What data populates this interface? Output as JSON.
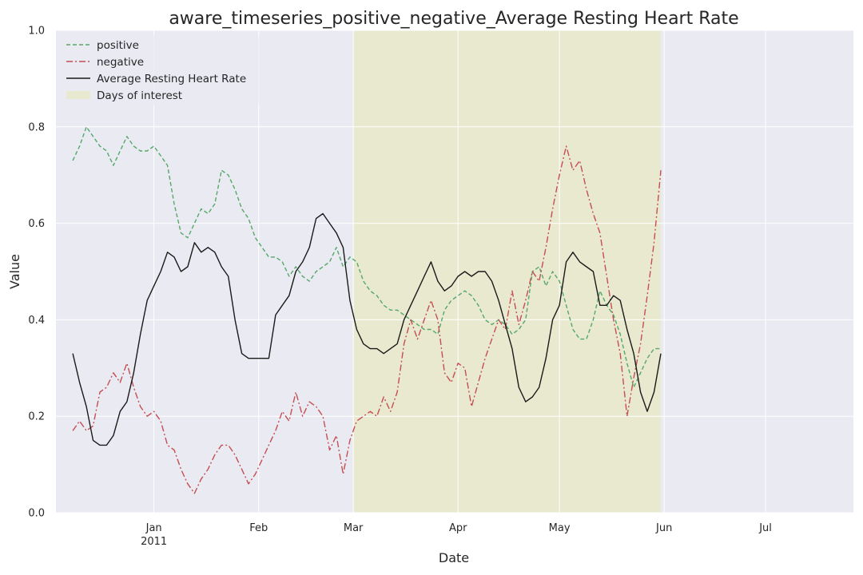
{
  "chart_data": {
    "type": "line",
    "title": "aware_timeseries_positive_negative_Average Resting Heart Rate",
    "xlabel": "Date",
    "ylabel": "Value",
    "ylim": [
      0,
      1
    ],
    "xlim": [
      "2010-12-03",
      "2011-07-27"
    ],
    "y_ticks": [
      "0.0",
      "0.2",
      "0.4",
      "0.6",
      "0.8",
      "1.0"
    ],
    "x_ticks": [
      {
        "date": "2011-01-01",
        "label": "Jan",
        "sublabel": "2011"
      },
      {
        "date": "2011-02-01",
        "label": "Feb",
        "sublabel": ""
      },
      {
        "date": "2011-03-01",
        "label": "Mar",
        "sublabel": ""
      },
      {
        "date": "2011-04-01",
        "label": "Apr",
        "sublabel": ""
      },
      {
        "date": "2011-05-01",
        "label": "May",
        "sublabel": ""
      },
      {
        "date": "2011-06-01",
        "label": "Jun",
        "sublabel": ""
      },
      {
        "date": "2011-07-01",
        "label": "Jul",
        "sublabel": ""
      }
    ],
    "grid": true,
    "legend_position": "top-left",
    "highlight": {
      "name": "Days of interest",
      "start": "2011-03-01",
      "end": "2011-05-31",
      "color": "#e9e9d0"
    },
    "series": [
      {
        "name": "positive",
        "color": "#55a868",
        "style": "dashed",
        "points": [
          [
            "2010-12-08",
            0.73
          ],
          [
            "2010-12-10",
            0.76
          ],
          [
            "2010-12-12",
            0.8
          ],
          [
            "2010-12-14",
            0.78
          ],
          [
            "2010-12-16",
            0.76
          ],
          [
            "2010-12-18",
            0.75
          ],
          [
            "2010-12-20",
            0.72
          ],
          [
            "2010-12-22",
            0.75
          ],
          [
            "2010-12-24",
            0.78
          ],
          [
            "2010-12-26",
            0.76
          ],
          [
            "2010-12-28",
            0.75
          ],
          [
            "2010-12-30",
            0.75
          ],
          [
            "2011-01-01",
            0.76
          ],
          [
            "2011-01-03",
            0.74
          ],
          [
            "2011-01-05",
            0.72
          ],
          [
            "2011-01-07",
            0.64
          ],
          [
            "2011-01-09",
            0.58
          ],
          [
            "2011-01-11",
            0.57
          ],
          [
            "2011-01-13",
            0.6
          ],
          [
            "2011-01-15",
            0.63
          ],
          [
            "2011-01-17",
            0.62
          ],
          [
            "2011-01-19",
            0.64
          ],
          [
            "2011-01-21",
            0.71
          ],
          [
            "2011-01-23",
            0.7
          ],
          [
            "2011-01-25",
            0.67
          ],
          [
            "2011-01-27",
            0.63
          ],
          [
            "2011-01-29",
            0.61
          ],
          [
            "2011-01-31",
            0.57
          ],
          [
            "2011-02-02",
            0.55
          ],
          [
            "2011-02-04",
            0.53
          ],
          [
            "2011-02-06",
            0.53
          ],
          [
            "2011-02-08",
            0.52
          ],
          [
            "2011-02-10",
            0.49
          ],
          [
            "2011-02-12",
            0.51
          ],
          [
            "2011-02-14",
            0.49
          ],
          [
            "2011-02-16",
            0.48
          ],
          [
            "2011-02-18",
            0.5
          ],
          [
            "2011-02-20",
            0.51
          ],
          [
            "2011-02-22",
            0.52
          ],
          [
            "2011-02-24",
            0.55
          ],
          [
            "2011-02-26",
            0.51
          ],
          [
            "2011-02-28",
            0.53
          ],
          [
            "2011-03-02",
            0.52
          ],
          [
            "2011-03-04",
            0.48
          ],
          [
            "2011-03-06",
            0.46
          ],
          [
            "2011-03-08",
            0.45
          ],
          [
            "2011-03-10",
            0.43
          ],
          [
            "2011-03-12",
            0.42
          ],
          [
            "2011-03-14",
            0.42
          ],
          [
            "2011-03-16",
            0.41
          ],
          [
            "2011-03-18",
            0.4
          ],
          [
            "2011-03-20",
            0.39
          ],
          [
            "2011-03-22",
            0.38
          ],
          [
            "2011-03-24",
            0.38
          ],
          [
            "2011-03-26",
            0.37
          ],
          [
            "2011-03-28",
            0.42
          ],
          [
            "2011-03-30",
            0.44
          ],
          [
            "2011-04-01",
            0.45
          ],
          [
            "2011-04-03",
            0.46
          ],
          [
            "2011-04-05",
            0.45
          ],
          [
            "2011-04-07",
            0.43
          ],
          [
            "2011-04-09",
            0.4
          ],
          [
            "2011-04-11",
            0.39
          ],
          [
            "2011-04-13",
            0.4
          ],
          [
            "2011-04-15",
            0.39
          ],
          [
            "2011-04-17",
            0.37
          ],
          [
            "2011-04-19",
            0.38
          ],
          [
            "2011-04-21",
            0.4
          ],
          [
            "2011-04-23",
            0.5
          ],
          [
            "2011-04-25",
            0.51
          ],
          [
            "2011-04-27",
            0.47
          ],
          [
            "2011-04-29",
            0.5
          ],
          [
            "2011-05-01",
            0.48
          ],
          [
            "2011-05-03",
            0.43
          ],
          [
            "2011-05-05",
            0.38
          ],
          [
            "2011-05-07",
            0.36
          ],
          [
            "2011-05-09",
            0.36
          ],
          [
            "2011-05-11",
            0.4
          ],
          [
            "2011-05-13",
            0.46
          ],
          [
            "2011-05-15",
            0.43
          ],
          [
            "2011-05-17",
            0.41
          ],
          [
            "2011-05-19",
            0.37
          ],
          [
            "2011-05-21",
            0.31
          ],
          [
            "2011-05-23",
            0.26
          ],
          [
            "2011-05-25",
            0.29
          ],
          [
            "2011-05-27",
            0.32
          ],
          [
            "2011-05-29",
            0.34
          ],
          [
            "2011-05-31",
            0.34
          ]
        ]
      },
      {
        "name": "negative",
        "color": "#c44e52",
        "style": "dashdot",
        "points": [
          [
            "2010-12-08",
            0.17
          ],
          [
            "2010-12-10",
            0.19
          ],
          [
            "2010-12-12",
            0.17
          ],
          [
            "2010-12-14",
            0.18
          ],
          [
            "2010-12-16",
            0.25
          ],
          [
            "2010-12-18",
            0.26
          ],
          [
            "2010-12-20",
            0.29
          ],
          [
            "2010-12-22",
            0.27
          ],
          [
            "2010-12-24",
            0.31
          ],
          [
            "2010-12-26",
            0.26
          ],
          [
            "2010-12-28",
            0.22
          ],
          [
            "2010-12-30",
            0.2
          ],
          [
            "2011-01-01",
            0.21
          ],
          [
            "2011-01-03",
            0.19
          ],
          [
            "2011-01-05",
            0.14
          ],
          [
            "2011-01-07",
            0.13
          ],
          [
            "2011-01-09",
            0.09
          ],
          [
            "2011-01-11",
            0.06
          ],
          [
            "2011-01-13",
            0.04
          ],
          [
            "2011-01-15",
            0.07
          ],
          [
            "2011-01-17",
            0.09
          ],
          [
            "2011-01-19",
            0.12
          ],
          [
            "2011-01-21",
            0.14
          ],
          [
            "2011-01-23",
            0.14
          ],
          [
            "2011-01-25",
            0.12
          ],
          [
            "2011-01-27",
            0.09
          ],
          [
            "2011-01-29",
            0.06
          ],
          [
            "2011-01-31",
            0.08
          ],
          [
            "2011-02-02",
            0.11
          ],
          [
            "2011-02-04",
            0.14
          ],
          [
            "2011-02-06",
            0.17
          ],
          [
            "2011-02-08",
            0.21
          ],
          [
            "2011-02-10",
            0.19
          ],
          [
            "2011-02-12",
            0.25
          ],
          [
            "2011-02-14",
            0.2
          ],
          [
            "2011-02-16",
            0.23
          ],
          [
            "2011-02-18",
            0.22
          ],
          [
            "2011-02-20",
            0.2
          ],
          [
            "2011-02-22",
            0.13
          ],
          [
            "2011-02-24",
            0.16
          ],
          [
            "2011-02-26",
            0.08
          ],
          [
            "2011-02-28",
            0.15
          ],
          [
            "2011-03-02",
            0.19
          ],
          [
            "2011-03-04",
            0.2
          ],
          [
            "2011-03-06",
            0.21
          ],
          [
            "2011-03-08",
            0.2
          ],
          [
            "2011-03-10",
            0.24
          ],
          [
            "2011-03-12",
            0.21
          ],
          [
            "2011-03-14",
            0.25
          ],
          [
            "2011-03-16",
            0.35
          ],
          [
            "2011-03-18",
            0.4
          ],
          [
            "2011-03-20",
            0.36
          ],
          [
            "2011-03-22",
            0.4
          ],
          [
            "2011-03-24",
            0.44
          ],
          [
            "2011-03-26",
            0.4
          ],
          [
            "2011-03-28",
            0.29
          ],
          [
            "2011-03-30",
            0.27
          ],
          [
            "2011-04-01",
            0.31
          ],
          [
            "2011-04-03",
            0.3
          ],
          [
            "2011-04-05",
            0.22
          ],
          [
            "2011-04-07",
            0.27
          ],
          [
            "2011-04-09",
            0.32
          ],
          [
            "2011-04-11",
            0.36
          ],
          [
            "2011-04-13",
            0.4
          ],
          [
            "2011-04-15",
            0.38
          ],
          [
            "2011-04-17",
            0.46
          ],
          [
            "2011-04-19",
            0.39
          ],
          [
            "2011-04-21",
            0.44
          ],
          [
            "2011-04-23",
            0.5
          ],
          [
            "2011-04-25",
            0.48
          ],
          [
            "2011-04-27",
            0.55
          ],
          [
            "2011-04-29",
            0.63
          ],
          [
            "2011-05-01",
            0.7
          ],
          [
            "2011-05-03",
            0.76
          ],
          [
            "2011-05-05",
            0.71
          ],
          [
            "2011-05-07",
            0.73
          ],
          [
            "2011-05-09",
            0.67
          ],
          [
            "2011-05-11",
            0.62
          ],
          [
            "2011-05-13",
            0.58
          ],
          [
            "2011-05-15",
            0.49
          ],
          [
            "2011-05-17",
            0.4
          ],
          [
            "2011-05-19",
            0.33
          ],
          [
            "2011-05-21",
            0.2
          ],
          [
            "2011-05-23",
            0.28
          ],
          [
            "2011-05-25",
            0.35
          ],
          [
            "2011-05-27",
            0.45
          ],
          [
            "2011-05-29",
            0.56
          ],
          [
            "2011-05-31",
            0.71
          ]
        ]
      },
      {
        "name": "Average Resting Heart Rate",
        "color": "#1a1a1a",
        "style": "solid",
        "points": [
          [
            "2010-12-08",
            0.33
          ],
          [
            "2010-12-10",
            0.27
          ],
          [
            "2010-12-12",
            0.22
          ],
          [
            "2010-12-14",
            0.15
          ],
          [
            "2010-12-16",
            0.14
          ],
          [
            "2010-12-18",
            0.14
          ],
          [
            "2010-12-20",
            0.16
          ],
          [
            "2010-12-22",
            0.21
          ],
          [
            "2010-12-24",
            0.23
          ],
          [
            "2010-12-26",
            0.29
          ],
          [
            "2010-12-28",
            0.37
          ],
          [
            "2010-12-30",
            0.44
          ],
          [
            "2011-01-01",
            0.47
          ],
          [
            "2011-01-03",
            0.5
          ],
          [
            "2011-01-05",
            0.54
          ],
          [
            "2011-01-07",
            0.53
          ],
          [
            "2011-01-09",
            0.5
          ],
          [
            "2011-01-11",
            0.51
          ],
          [
            "2011-01-13",
            0.56
          ],
          [
            "2011-01-15",
            0.54
          ],
          [
            "2011-01-17",
            0.55
          ],
          [
            "2011-01-19",
            0.54
          ],
          [
            "2011-01-21",
            0.51
          ],
          [
            "2011-01-23",
            0.49
          ],
          [
            "2011-01-25",
            0.4
          ],
          [
            "2011-01-27",
            0.33
          ],
          [
            "2011-01-29",
            0.32
          ],
          [
            "2011-01-31",
            0.32
          ],
          [
            "2011-02-02",
            0.32
          ],
          [
            "2011-02-04",
            0.32
          ],
          [
            "2011-02-06",
            0.41
          ],
          [
            "2011-02-08",
            0.43
          ],
          [
            "2011-02-10",
            0.45
          ],
          [
            "2011-02-12",
            0.5
          ],
          [
            "2011-02-14",
            0.52
          ],
          [
            "2011-02-16",
            0.55
          ],
          [
            "2011-02-18",
            0.61
          ],
          [
            "2011-02-20",
            0.62
          ],
          [
            "2011-02-22",
            0.6
          ],
          [
            "2011-02-24",
            0.58
          ],
          [
            "2011-02-26",
            0.55
          ],
          [
            "2011-02-28",
            0.44
          ],
          [
            "2011-03-02",
            0.38
          ],
          [
            "2011-03-04",
            0.35
          ],
          [
            "2011-03-06",
            0.34
          ],
          [
            "2011-03-08",
            0.34
          ],
          [
            "2011-03-10",
            0.33
          ],
          [
            "2011-03-12",
            0.34
          ],
          [
            "2011-03-14",
            0.35
          ],
          [
            "2011-03-16",
            0.4
          ],
          [
            "2011-03-18",
            0.43
          ],
          [
            "2011-03-20",
            0.46
          ],
          [
            "2011-03-22",
            0.49
          ],
          [
            "2011-03-24",
            0.52
          ],
          [
            "2011-03-26",
            0.48
          ],
          [
            "2011-03-28",
            0.46
          ],
          [
            "2011-03-30",
            0.47
          ],
          [
            "2011-04-01",
            0.49
          ],
          [
            "2011-04-03",
            0.5
          ],
          [
            "2011-04-05",
            0.49
          ],
          [
            "2011-04-07",
            0.5
          ],
          [
            "2011-04-09",
            0.5
          ],
          [
            "2011-04-11",
            0.48
          ],
          [
            "2011-04-13",
            0.44
          ],
          [
            "2011-04-15",
            0.39
          ],
          [
            "2011-04-17",
            0.34
          ],
          [
            "2011-04-19",
            0.26
          ],
          [
            "2011-04-21",
            0.23
          ],
          [
            "2011-04-23",
            0.24
          ],
          [
            "2011-04-25",
            0.26
          ],
          [
            "2011-04-27",
            0.32
          ],
          [
            "2011-04-29",
            0.4
          ],
          [
            "2011-05-01",
            0.43
          ],
          [
            "2011-05-03",
            0.52
          ],
          [
            "2011-05-05",
            0.54
          ],
          [
            "2011-05-07",
            0.52
          ],
          [
            "2011-05-09",
            0.51
          ],
          [
            "2011-05-11",
            0.5
          ],
          [
            "2011-05-13",
            0.43
          ],
          [
            "2011-05-15",
            0.43
          ],
          [
            "2011-05-17",
            0.45
          ],
          [
            "2011-05-19",
            0.44
          ],
          [
            "2011-05-21",
            0.38
          ],
          [
            "2011-05-23",
            0.33
          ],
          [
            "2011-05-25",
            0.25
          ],
          [
            "2011-05-27",
            0.21
          ],
          [
            "2011-05-29",
            0.25
          ],
          [
            "2011-05-31",
            0.33
          ]
        ]
      }
    ]
  }
}
